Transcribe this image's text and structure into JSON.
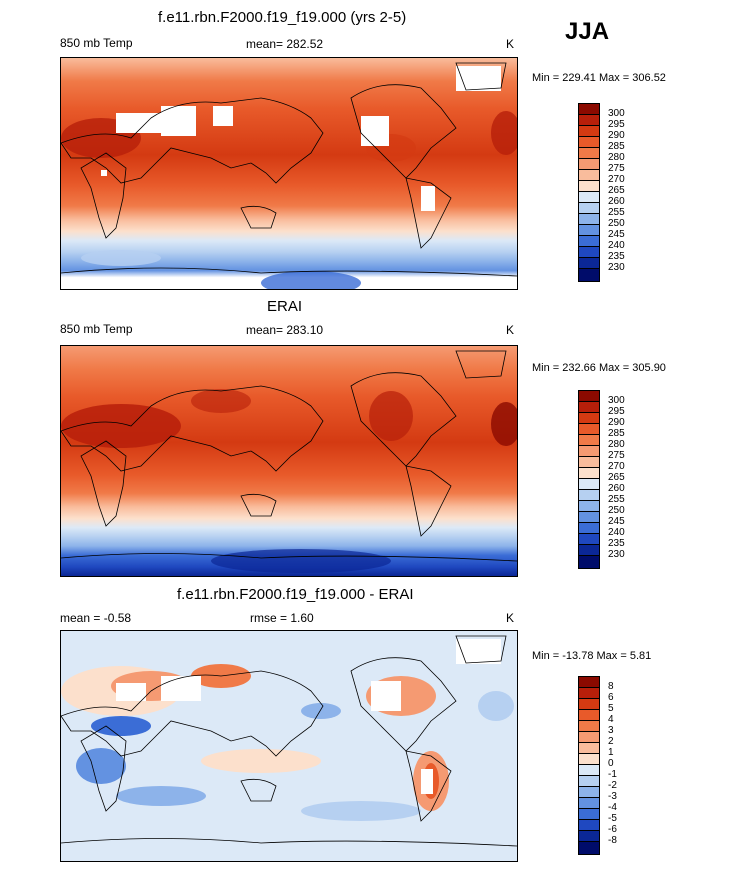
{
  "header": {
    "season": "JJA"
  },
  "panels": [
    {
      "id": "model",
      "title": "f.e11.rbn.F2000.f19_f19.000 (yrs 2-5)",
      "left_label": "850 mb Temp",
      "center_label": "mean= 282.52",
      "units": "K",
      "minmax": "Min = 229.41 Max = 306.52",
      "colorbar": {
        "labels": [
          "300",
          "295",
          "290",
          "285",
          "280",
          "275",
          "270",
          "265",
          "260",
          "255",
          "250",
          "245",
          "240",
          "235",
          "230"
        ],
        "colors": [
          "#8b0a00",
          "#b71f0a",
          "#d43a12",
          "#e85a2a",
          "#f07a48",
          "#f59a72",
          "#f9bc9c",
          "#fce0cc",
          "#dce9f7",
          "#b6d0f1",
          "#8db3ea",
          "#6392e1",
          "#3b6dd6",
          "#1f48c0",
          "#0b2796",
          "#000c6a"
        ]
      }
    },
    {
      "id": "obs",
      "title": "ERAI",
      "left_label": "850 mb Temp",
      "center_label": "mean= 283.10",
      "units": "K",
      "minmax": "Min = 232.66 Max = 305.90",
      "colorbar": {
        "labels": [
          "300",
          "295",
          "290",
          "285",
          "280",
          "275",
          "270",
          "265",
          "260",
          "255",
          "250",
          "245",
          "240",
          "235",
          "230"
        ],
        "colors": [
          "#8b0a00",
          "#b71f0a",
          "#d43a12",
          "#e85a2a",
          "#f07a48",
          "#f59a72",
          "#f9bc9c",
          "#fce0cc",
          "#dce9f7",
          "#b6d0f1",
          "#8db3ea",
          "#6392e1",
          "#3b6dd6",
          "#1f48c0",
          "#0b2796",
          "#000c6a"
        ]
      }
    },
    {
      "id": "diff",
      "title": "f.e11.rbn.F2000.f19_f19.000 - ERAI",
      "left_label": "mean =  -0.58",
      "center_label": "rmse =   1.60",
      "units": "K",
      "minmax": "Min = -13.78 Max =   5.81",
      "colorbar": {
        "labels": [
          "8",
          "6",
          "5",
          "4",
          "3",
          "2",
          "1",
          "0",
          "-1",
          "-2",
          "-3",
          "-4",
          "-5",
          "-6",
          "-8"
        ],
        "colors": [
          "#8b0a00",
          "#b71f0a",
          "#d43a12",
          "#e85a2a",
          "#f07a48",
          "#f59a72",
          "#f9bc9c",
          "#fce0cc",
          "#dce9f7",
          "#b6d0f1",
          "#8db3ea",
          "#6392e1",
          "#3b6dd6",
          "#1f48c0",
          "#0b2796",
          "#000c6a"
        ]
      }
    }
  ]
}
